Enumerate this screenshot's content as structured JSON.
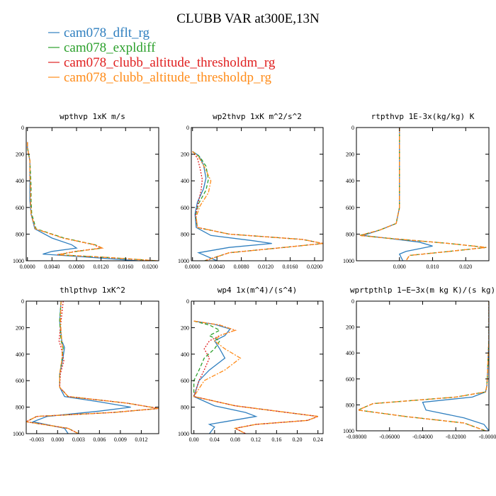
{
  "title": "CLUBB VAR at300E,13N",
  "series_legend": [
    {
      "name": "cam078_dflt_rg",
      "color": "#2f7fbf",
      "dash": ""
    },
    {
      "name": "cam078_expldiff",
      "color": "#2ca02c",
      "dash": "5,3"
    },
    {
      "name": "cam078_clubb_altitude_thresholdm_rg",
      "color": "#e02020",
      "dash": "2,2"
    },
    {
      "name": "cam078_clubb_altitude_thresholdp_rg",
      "color": "#ff8c1a",
      "dash": "6,2,2,2"
    }
  ],
  "chart_data": [
    {
      "type": "line",
      "title": "wpthvp   1xK m/s",
      "xlim": [
        -0.0002,
        0.0214
      ],
      "ylim": [
        0,
        1000
      ],
      "xticks": [
        0,
        0.004,
        0.008,
        0.012,
        0.016,
        0.02
      ],
      "xtick_labels": [
        "0.0000",
        "0.0040",
        "0.0080",
        "0.0120",
        "0.0160",
        "0.0200"
      ],
      "yticks": [
        0,
        200,
        400,
        600,
        800,
        1000
      ],
      "ytick_labels": [
        "0",
        "200",
        "400",
        "600",
        "800",
        "1000"
      ],
      "series": [
        {
          "name": "cam078_dflt_rg",
          "x": [
            0.0,
            0.0,
            0.0004,
            0.0004,
            0.0004,
            0.0004,
            0.0006,
            0.0012,
            0.004,
            0.0072,
            0.008,
            0.004,
            0.0025,
            0.009,
            0.018
          ],
          "y": [
            110,
            150,
            250,
            350,
            450,
            550,
            650,
            760,
            830,
            880,
            905,
            930,
            950,
            970,
            1000
          ]
        },
        {
          "name": "cam078_expldiff",
          "x": [
            0.0,
            0.0,
            0.0004,
            0.0005,
            0.0006,
            0.0006,
            0.0007,
            0.0014,
            0.006,
            0.011,
            0.0122,
            0.008,
            0.005,
            0.013,
            0.021
          ],
          "y": [
            110,
            150,
            250,
            350,
            450,
            550,
            650,
            760,
            830,
            880,
            905,
            930,
            955,
            975,
            1000
          ]
        },
        {
          "name": "cam078_clubb_altitude_thresholdm_rg",
          "x": [
            0.0,
            0.0,
            0.0004,
            0.0004,
            0.0005,
            0.0005,
            0.0006,
            0.0013,
            0.0058,
            0.0108,
            0.012,
            0.0078,
            0.0048,
            0.0128,
            0.0208
          ],
          "y": [
            110,
            150,
            250,
            350,
            450,
            550,
            650,
            760,
            830,
            880,
            905,
            930,
            955,
            975,
            1000
          ]
        },
        {
          "name": "cam078_clubb_altitude_thresholdp_rg",
          "x": [
            0.0,
            0.0,
            0.0004,
            0.0004,
            0.0005,
            0.0005,
            0.0006,
            0.0013,
            0.0058,
            0.011,
            0.0122,
            0.008,
            0.005,
            0.013,
            0.0212
          ],
          "y": [
            110,
            150,
            250,
            350,
            450,
            550,
            650,
            760,
            830,
            880,
            905,
            930,
            955,
            975,
            1000
          ]
        }
      ]
    },
    {
      "type": "line",
      "title": "wp2thvp   1xK m^2/s^2",
      "xlim": [
        -0.0002,
        0.0214
      ],
      "ylim": [
        0,
        1000
      ],
      "xticks": [
        0,
        0.004,
        0.008,
        0.012,
        0.016,
        0.02
      ],
      "xtick_labels": [
        "0.0000",
        "0.0040",
        "0.0080",
        "0.0120",
        "0.0160",
        "0.0200"
      ],
      "yticks": [
        0,
        200,
        400,
        600,
        800,
        1000
      ],
      "ytick_labels": [
        "0",
        "200",
        "400",
        "600",
        "800",
        "1000"
      ],
      "series": [
        {
          "name": "cam078_dflt_rg",
          "x": [
            0.0,
            0.001,
            0.0018,
            0.0022,
            0.0018,
            0.0008,
            0.0004,
            0.0006,
            0.003,
            0.01,
            0.013,
            0.006,
            0.001,
            0.004
          ],
          "y": [
            180,
            210,
            280,
            380,
            460,
            560,
            650,
            750,
            810,
            850,
            870,
            900,
            940,
            1000
          ]
        },
        {
          "name": "cam078_expldiff",
          "x": [
            0.0,
            0.0012,
            0.0022,
            0.0026,
            0.0022,
            0.001,
            0.0005,
            0.0008,
            0.006,
            0.018,
            0.0214,
            0.015,
            0.006,
            0.002
          ],
          "y": [
            180,
            220,
            290,
            390,
            470,
            570,
            660,
            750,
            800,
            840,
            870,
            900,
            940,
            1000
          ]
        },
        {
          "name": "cam078_clubb_altitude_thresholdm_rg",
          "x": [
            0.0,
            0.0008,
            0.0012,
            0.0016,
            0.0014,
            0.0009,
            0.0005,
            0.0008,
            0.006,
            0.018,
            0.0214,
            0.015,
            0.006,
            0.002
          ],
          "y": [
            180,
            230,
            300,
            390,
            470,
            570,
            660,
            750,
            800,
            840,
            870,
            900,
            940,
            1000
          ]
        },
        {
          "name": "cam078_clubb_altitude_thresholdp_rg",
          "x": [
            0.0,
            0.001,
            0.002,
            0.003,
            0.0026,
            0.0012,
            0.0006,
            0.0008,
            0.006,
            0.018,
            0.0214,
            0.015,
            0.006,
            0.002
          ],
          "y": [
            180,
            220,
            300,
            400,
            490,
            590,
            670,
            750,
            800,
            840,
            870,
            900,
            940,
            1000
          ]
        }
      ]
    },
    {
      "type": "line",
      "title": "rtpthvp   1E-3x(kg/kg) K",
      "xlim": [
        -0.013,
        0.027
      ],
      "ylim": [
        0,
        1000
      ],
      "xticks": [
        0,
        0.01,
        0.02
      ],
      "xtick_labels": [
        "0.000",
        "0.010",
        "0.020"
      ],
      "yticks": [
        0,
        200,
        400,
        600,
        800,
        1000
      ],
      "ytick_labels": [
        "0",
        "200",
        "400",
        "600",
        "800",
        "1000"
      ],
      "series": [
        {
          "name": "cam078_dflt_rg",
          "x": [
            0.0,
            0.0,
            0.0,
            0.0,
            -0.001,
            -0.006,
            -0.011,
            -0.004,
            0.006,
            0.01,
            0.002,
            0.0,
            0.001
          ],
          "y": [
            0,
            200,
            400,
            600,
            720,
            770,
            810,
            830,
            860,
            890,
            930,
            950,
            1000
          ]
        },
        {
          "name": "cam078_expldiff",
          "x": [
            0.0,
            0.0,
            0.0,
            0.0,
            -0.001,
            -0.006,
            -0.012,
            -0.004,
            0.015,
            0.0262,
            0.015,
            0.003,
            0.002
          ],
          "y": [
            0,
            200,
            400,
            600,
            720,
            770,
            810,
            830,
            870,
            900,
            930,
            960,
            1000
          ]
        },
        {
          "name": "cam078_clubb_altitude_thresholdm_rg",
          "x": [
            0.0,
            0.0,
            0.0,
            0.0,
            -0.001,
            -0.006,
            -0.012,
            -0.004,
            0.015,
            0.0262,
            0.015,
            0.003,
            0.002
          ],
          "y": [
            0,
            200,
            400,
            600,
            720,
            770,
            810,
            830,
            870,
            900,
            930,
            960,
            1000
          ]
        },
        {
          "name": "cam078_clubb_altitude_thresholdp_rg",
          "x": [
            0.0,
            0.0,
            0.0,
            0.0,
            -0.001,
            -0.006,
            -0.012,
            -0.004,
            0.015,
            0.0262,
            0.015,
            0.003,
            0.002
          ],
          "y": [
            0,
            200,
            400,
            600,
            720,
            770,
            810,
            830,
            870,
            900,
            930,
            960,
            1000
          ]
        }
      ]
    },
    {
      "type": "line",
      "title": "thlpthvp   1xK^2",
      "xlim": [
        -0.0045,
        0.0145
      ],
      "ylim": [
        0,
        1000
      ],
      "xticks": [
        -0.003,
        0,
        0.003,
        0.006,
        0.009,
        0.012
      ],
      "xtick_labels": [
        "-0.003",
        "0.000",
        "0.003",
        "0.006",
        "0.009",
        "0.012"
      ],
      "yticks": [
        0,
        200,
        400,
        600,
        800,
        1000
      ],
      "ytick_labels": [
        "0",
        "200",
        "400",
        "600",
        "800",
        "1000"
      ],
      "series": [
        {
          "name": "cam078_dflt_rg",
          "x": [
            0.0005,
            0.0003,
            0.0006,
            0.001,
            0.0007,
            0.0003,
            0.0003,
            0.001,
            0.006,
            0.0105,
            0.006,
            -0.0015,
            -0.0035,
            0.001,
            0.0015
          ],
          "y": [
            0,
            150,
            300,
            350,
            450,
            550,
            650,
            720,
            760,
            800,
            830,
            870,
            910,
            960,
            1000
          ]
        },
        {
          "name": "cam078_expldiff",
          "x": [
            0.0005,
            0.0003,
            0.0005,
            0.0008,
            0.0006,
            0.0003,
            0.0003,
            0.0015,
            0.01,
            0.0145,
            0.008,
            -0.003,
            -0.0045,
            0.0015,
            0.003
          ],
          "y": [
            0,
            150,
            300,
            350,
            450,
            550,
            650,
            720,
            770,
            810,
            840,
            870,
            910,
            960,
            1000
          ]
        },
        {
          "name": "cam078_clubb_altitude_thresholdm_rg",
          "x": [
            0.0008,
            0.0005,
            0.0002,
            0.0005,
            0.0009,
            0.0004,
            0.0003,
            0.0015,
            0.01,
            0.0145,
            0.008,
            -0.003,
            -0.0045,
            0.0015,
            0.003
          ],
          "y": [
            0,
            150,
            300,
            350,
            450,
            550,
            650,
            720,
            770,
            810,
            840,
            870,
            910,
            960,
            1000
          ]
        },
        {
          "name": "cam078_clubb_altitude_thresholdp_rg",
          "x": [
            0.0005,
            0.0004,
            0.0006,
            0.0007,
            0.0006,
            0.0003,
            0.0003,
            0.0015,
            0.01,
            0.0145,
            0.008,
            -0.003,
            -0.0045,
            0.0015,
            0.003
          ],
          "y": [
            0,
            150,
            300,
            350,
            450,
            550,
            650,
            720,
            770,
            810,
            840,
            870,
            910,
            960,
            1000
          ]
        }
      ]
    },
    {
      "type": "line",
      "title": "wp4   1x(m^4)/(s^4)",
      "xlim": [
        -0.005,
        0.25
      ],
      "ylim": [
        0,
        1000
      ],
      "xticks": [
        0,
        0.04,
        0.08,
        0.12,
        0.16,
        0.2,
        0.24
      ],
      "xtick_labels": [
        "0.00",
        "0.04",
        "0.08",
        "0.12",
        "0.16",
        "0.20",
        "0.24"
      ],
      "yticks": [
        0,
        200,
        400,
        600,
        800,
        1000
      ],
      "ytick_labels": [
        "0",
        "200",
        "400",
        "600",
        "800",
        "1000"
      ],
      "series": [
        {
          "name": "cam078_dflt_rg",
          "x": [
            0.0,
            0.04,
            0.07,
            0.06,
            0.04,
            0.05,
            0.06,
            0.03,
            0.01,
            0.0,
            0.04,
            0.1,
            0.12,
            0.06,
            0.03,
            0.04,
            0.03
          ],
          "y": [
            150,
            175,
            210,
            260,
            300,
            360,
            430,
            520,
            600,
            720,
            790,
            840,
            870,
            910,
            930,
            950,
            1000
          ]
        },
        {
          "name": "cam078_expldiff",
          "x": [
            0.0,
            0.03,
            0.05,
            0.03,
            0.05,
            0.04,
            0.02,
            0.01,
            0.0,
            0.0,
            0.08,
            0.18,
            0.24,
            0.22,
            0.12,
            0.08,
            0.1
          ],
          "y": [
            150,
            180,
            220,
            260,
            300,
            360,
            430,
            520,
            600,
            720,
            790,
            840,
            870,
            900,
            930,
            960,
            1000
          ]
        },
        {
          "name": "cam078_clubb_altitude_thresholdm_rg",
          "x": [
            0.0,
            0.05,
            0.08,
            0.05,
            0.03,
            0.02,
            0.03,
            0.02,
            0.01,
            0.0,
            0.08,
            0.18,
            0.24,
            0.22,
            0.12,
            0.08,
            0.1
          ],
          "y": [
            150,
            180,
            220,
            260,
            300,
            360,
            430,
            520,
            600,
            720,
            790,
            840,
            870,
            900,
            930,
            960,
            1000
          ]
        },
        {
          "name": "cam078_clubb_altitude_thresholdp_rg",
          "x": [
            0.0,
            0.05,
            0.08,
            0.05,
            0.04,
            0.06,
            0.09,
            0.06,
            0.02,
            0.0,
            0.08,
            0.18,
            0.24,
            0.22,
            0.12,
            0.08,
            0.1
          ],
          "y": [
            150,
            180,
            220,
            260,
            300,
            360,
            430,
            520,
            600,
            720,
            790,
            840,
            870,
            900,
            930,
            960,
            1000
          ]
        }
      ]
    },
    {
      "type": "line",
      "title": "wprtpthlp   1−E−3x(m kg K)/(s kg)",
      "xlim": [
        -0.08,
        0.0
      ],
      "ylim": [
        0,
        1000
      ],
      "xticks": [
        -0.08,
        -0.06,
        -0.04,
        -0.02,
        0
      ],
      "xtick_labels": [
        "-0.08000",
        "-0.06000",
        "-0.04000",
        "-0.02000",
        "-0.00000"
      ],
      "yticks": [
        0,
        200,
        400,
        600,
        800,
        1000
      ],
      "ytick_labels": [
        "0",
        "200",
        "400",
        "600",
        "800",
        "1000"
      ],
      "series": [
        {
          "name": "cam078_dflt_rg",
          "x": [
            0.0,
            0.0,
            -0.0005,
            -0.0008,
            -0.0012,
            -0.002,
            -0.01,
            -0.04,
            -0.038,
            -0.015,
            -0.003,
            0.0
          ],
          "y": [
            0,
            300,
            450,
            550,
            650,
            700,
            740,
            780,
            840,
            900,
            950,
            1000
          ]
        },
        {
          "name": "cam078_expldiff",
          "x": [
            0.0,
            0.0,
            -0.0005,
            -0.0008,
            -0.0012,
            -0.002,
            -0.02,
            -0.07,
            -0.079,
            -0.05,
            -0.015,
            -0.002
          ],
          "y": [
            0,
            300,
            450,
            550,
            650,
            700,
            740,
            790,
            840,
            890,
            940,
            1000
          ]
        },
        {
          "name": "cam078_clubb_altitude_thresholdm_rg",
          "x": [
            0.0,
            0.0,
            -0.0005,
            -0.0008,
            -0.0012,
            -0.002,
            -0.02,
            -0.07,
            -0.079,
            -0.05,
            -0.015,
            -0.002
          ],
          "y": [
            0,
            300,
            450,
            550,
            650,
            700,
            740,
            790,
            840,
            890,
            940,
            1000
          ]
        },
        {
          "name": "cam078_clubb_altitude_thresholdp_rg",
          "x": [
            0.0,
            0.0,
            -0.0005,
            -0.0008,
            -0.0012,
            -0.002,
            -0.02,
            -0.07,
            -0.079,
            -0.05,
            -0.015,
            -0.002
          ],
          "y": [
            0,
            300,
            450,
            550,
            650,
            700,
            740,
            790,
            840,
            890,
            940,
            1000
          ]
        }
      ]
    }
  ]
}
